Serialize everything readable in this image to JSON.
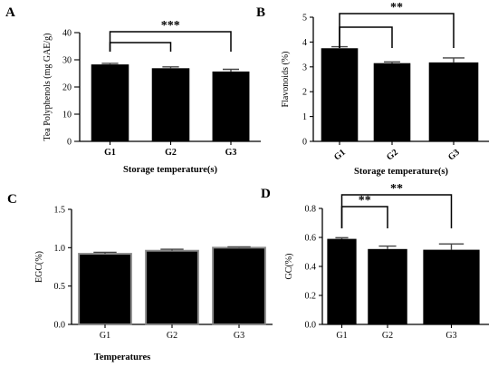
{
  "chart_data": [
    {
      "panel": "A",
      "type": "bar",
      "categories": [
        "G1",
        "G2",
        "G3"
      ],
      "values": [
        28.3,
        26.9,
        25.7
      ],
      "errors": [
        0.4,
        0.5,
        0.8
      ],
      "xlabel": "Storage temperature(s)",
      "ylabel": "Tea Polyphenols (mg GAE/g)",
      "ylim": [
        0,
        40
      ],
      "yticks": [
        0,
        10,
        20,
        30,
        40
      ],
      "significance": [
        {
          "from": 0,
          "to": 1,
          "label": ""
        },
        {
          "from": 0,
          "to": 2,
          "label": "***"
        }
      ]
    },
    {
      "panel": "B",
      "type": "bar",
      "categories": [
        "G1",
        "G2",
        "G3"
      ],
      "values": [
        3.75,
        3.15,
        3.18
      ],
      "errors": [
        0.06,
        0.05,
        0.18
      ],
      "xlabel": "Storage temperature(s)",
      "ylabel": "Flavonoids (%)",
      "ylim": [
        0,
        5
      ],
      "yticks": [
        0,
        1,
        2,
        3,
        4,
        5
      ],
      "significance": [
        {
          "from": 0,
          "to": 1,
          "label": ""
        },
        {
          "from": 0,
          "to": 2,
          "label": "**"
        }
      ]
    },
    {
      "panel": "C",
      "type": "bar",
      "categories": [
        "G1",
        "G2",
        "G3"
      ],
      "values": [
        0.92,
        0.96,
        1.0
      ],
      "errors": [
        0.02,
        0.02,
        0.01
      ],
      "xlabel": "Temperatures",
      "ylabel": "EGC(%)",
      "ylim": [
        0,
        1.5
      ],
      "yticks": [
        "0.0",
        "0.5",
        "1.0",
        "1.5"
      ],
      "significance": []
    },
    {
      "panel": "D",
      "type": "bar",
      "categories": [
        "G1",
        "G2",
        "G3"
      ],
      "values": [
        0.59,
        0.52,
        0.515
      ],
      "errors": [
        0.008,
        0.02,
        0.04
      ],
      "xlabel": "",
      "ylabel": "GC(%)",
      "ylim": [
        0,
        0.8
      ],
      "yticks": [
        "0.0",
        "0.2",
        "0.4",
        "0.6",
        "0.8"
      ],
      "significance": [
        {
          "from": 0,
          "to": 1,
          "label": "**"
        },
        {
          "from": 0,
          "to": 2,
          "label": "**"
        }
      ]
    }
  ]
}
